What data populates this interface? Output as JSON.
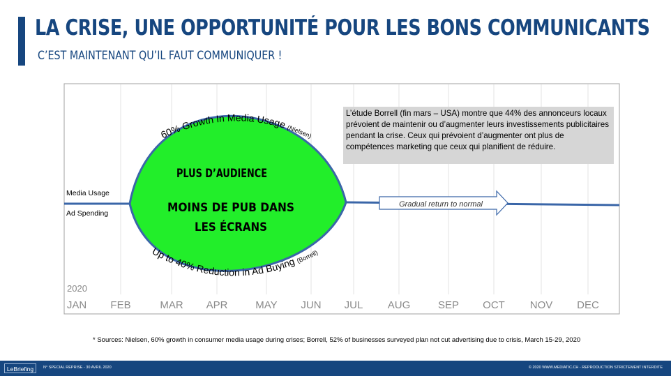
{
  "header": {
    "title": "LA CRISE, UNE OPPORTUNITÉ POUR LES BONS COMMUNICANTS",
    "subtitle": "C’EST MAINTENANT QU’IL FAUT COMMUNIQUER !"
  },
  "diagram": {
    "year": "2020",
    "months": [
      "JAN",
      "FEB",
      "MAR",
      "APR",
      "MAY",
      "JUN",
      "JUL",
      "AUG",
      "SEP",
      "OCT",
      "NOV",
      "DEC"
    ],
    "left_labels": {
      "media_usage": "Media Usage",
      "ad_spending": "Ad Spending"
    },
    "upper_arc_label": "60% Growth In Media Usage",
    "upper_arc_source": "(Nielsen)",
    "lower_arc_label": "Up to 40% Reduction in Ad Buying",
    "lower_arc_source": "(Borrell)",
    "leaf_line1": "PLUS D’AUDIENCE",
    "leaf_line2": "MOINS DE PUB DANS",
    "leaf_line3": "LES ÉCRANS",
    "arrow_label": "Gradual return to normal",
    "callout": "L’étude Borrell (fin mars – USA) montre que 44% des annonceurs locaux prévoient de maintenir ou d’augmenter leurs investissements publicitaires pendant la crise. Ceux qui prévoient d’augmenter ont plus de compétences marketing que ceux qui planifient de réduire.",
    "colors": {
      "leaf_fill": "#22ee2a",
      "line": "#3a66a8",
      "brand": "#16467f",
      "callout_bg": "#d6d6d6"
    }
  },
  "sources": "* Sources:  Nielsen, 60% growth in consumer media usage during crises; Borrell, 52% of businesses surveyed plan not cut advertising due to crisis, March 15-29, 2020",
  "footer": {
    "logo": "LeBriefing",
    "left": "N° SPECIAL REPRISE - 30 AVRIL 2020",
    "right": "© 2020  WWW.MEDIATIC.CH - REPRODUCTION STRICTEMENT INTERDITE"
  }
}
